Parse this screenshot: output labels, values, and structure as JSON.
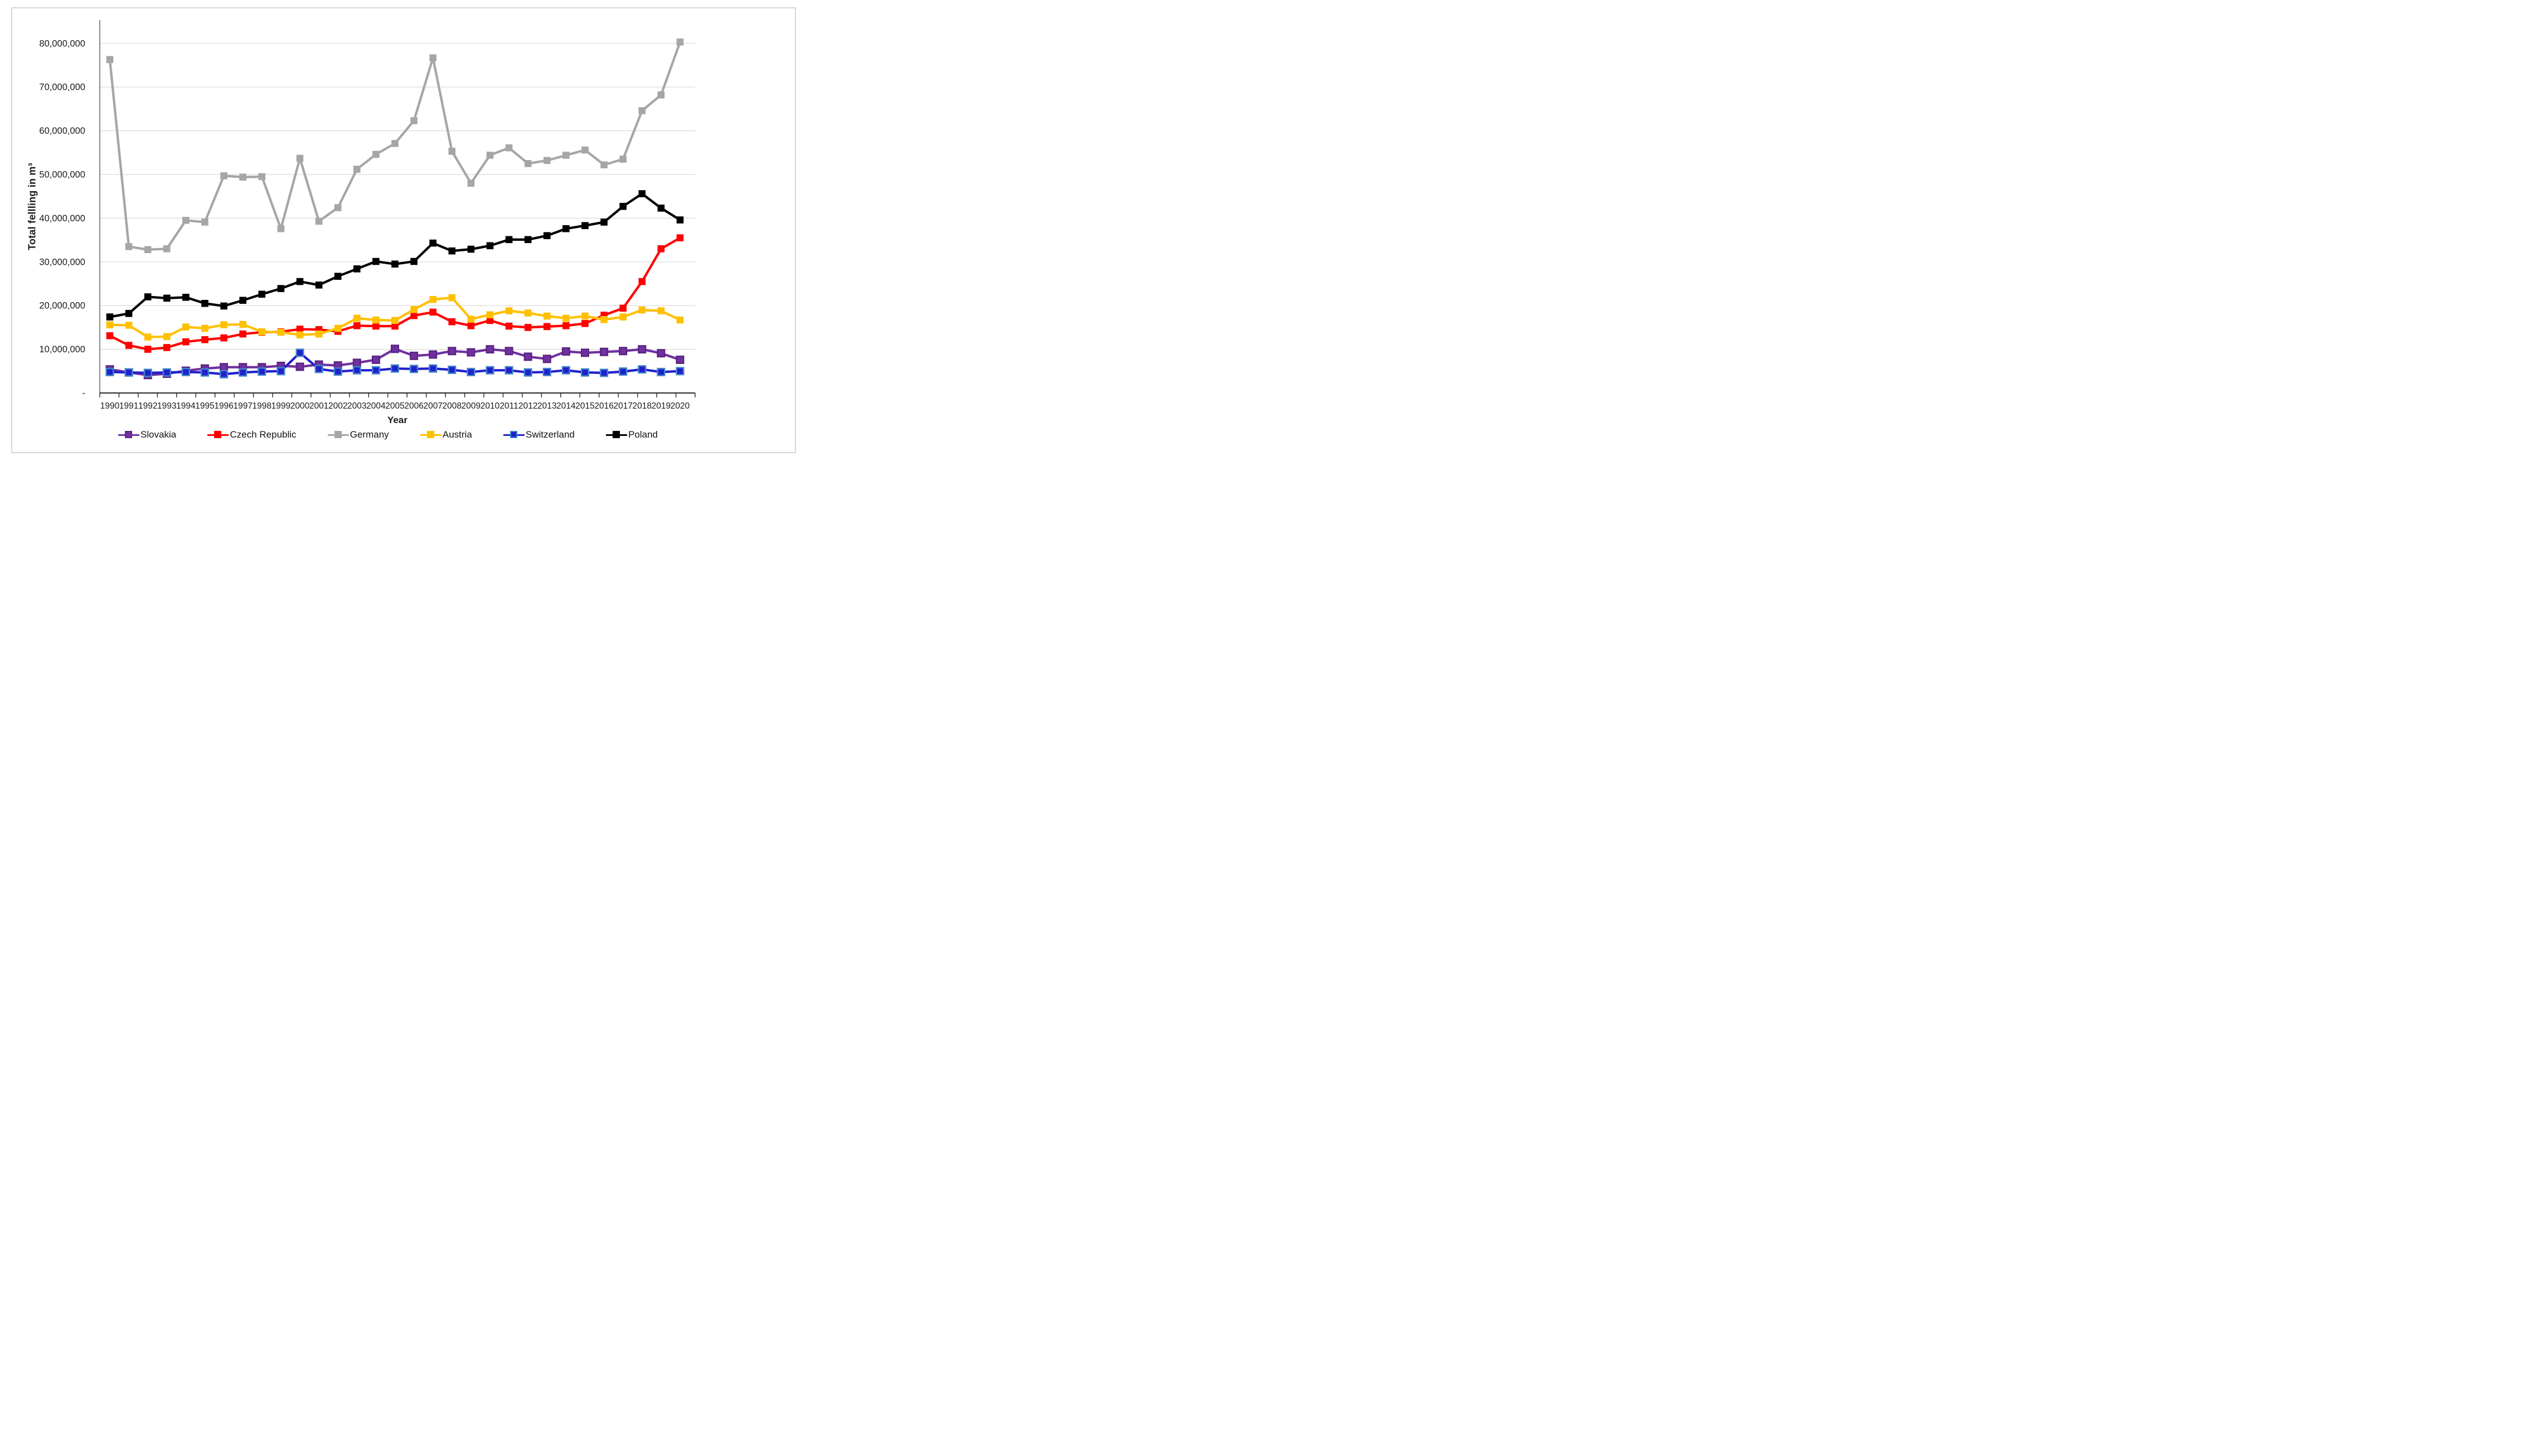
{
  "chart_data": {
    "type": "line",
    "title": "",
    "xlabel": "Year",
    "ylabel": "Total fellling in m³",
    "x": [
      1990,
      1991,
      1992,
      1993,
      1994,
      1995,
      1996,
      1997,
      1998,
      1999,
      2000,
      2001,
      2002,
      2003,
      2004,
      2005,
      2006,
      2007,
      2008,
      2009,
      2010,
      2011,
      2012,
      2013,
      2014,
      2015,
      2016,
      2017,
      2018,
      2019,
      2020
    ],
    "ylim": [
      0,
      80000000
    ],
    "ytick_step": 10000000,
    "zero_tick_label": "-",
    "grid": "horizontal",
    "legend_position": "bottom",
    "axis_color": "#262626",
    "gridline_color": "#d9d9d9",
    "yaxis_line_color": "#6e6e6e",
    "series": [
      {
        "name": "Slovakia",
        "color": "#7030A0",
        "marker_stroke": "#5a2580",
        "values": [
          5400000,
          4700000,
          4100000,
          4400000,
          5100000,
          5600000,
          5900000,
          5900000,
          5900000,
          6200000,
          6000000,
          6500000,
          6300000,
          6900000,
          7600000,
          10100000,
          8500000,
          8800000,
          9600000,
          9300000,
          10000000,
          9600000,
          8300000,
          7800000,
          9500000,
          9200000,
          9400000,
          9600000,
          10000000,
          9100000,
          7600000
        ]
      },
      {
        "name": "Czech Republic",
        "color": "#FF0000",
        "marker_stroke": "#FF0000",
        "values": [
          13100000,
          10900000,
          10000000,
          10400000,
          11700000,
          12200000,
          12600000,
          13500000,
          13900000,
          14000000,
          14600000,
          14500000,
          14100000,
          15400000,
          15300000,
          15300000,
          17700000,
          18500000,
          16300000,
          15400000,
          16600000,
          15300000,
          15000000,
          15200000,
          15400000,
          15900000,
          17800000,
          19400000,
          25500000,
          33000000,
          35500000
        ]
      },
      {
        "name": "Germany",
        "color": "#A6A6A6",
        "marker_stroke": "#A6A6A6",
        "values": [
          76300000,
          33500000,
          32800000,
          33000000,
          39500000,
          39100000,
          49700000,
          49400000,
          49500000,
          37600000,
          53700000,
          39300000,
          42400000,
          51200000,
          54600000,
          57100000,
          62300000,
          76700000,
          55300000,
          48000000,
          54400000,
          56100000,
          52500000,
          53200000,
          54400000,
          55600000,
          52200000,
          53500000,
          64600000,
          68200000,
          80300000
        ]
      },
      {
        "name": "Austria",
        "color": "#FFC000",
        "marker_stroke": "#FFC000",
        "values": [
          15600000,
          15500000,
          12800000,
          12900000,
          15100000,
          14800000,
          15600000,
          15700000,
          14000000,
          13900000,
          13300000,
          13500000,
          14800000,
          17100000,
          16700000,
          16600000,
          19100000,
          21400000,
          21800000,
          16900000,
          17900000,
          18800000,
          18300000,
          17600000,
          17100000,
          17600000,
          16800000,
          17400000,
          19000000,
          18800000,
          16700000
        ]
      },
      {
        "name": "Switzerland",
        "color": "#2021CE",
        "marker_stroke": "#4086C6",
        "values": [
          4800000,
          4700000,
          4600000,
          4700000,
          4800000,
          4700000,
          4300000,
          4700000,
          4900000,
          5000000,
          9200000,
          5500000,
          4900000,
          5200000,
          5200000,
          5600000,
          5500000,
          5600000,
          5300000,
          4800000,
          5200000,
          5200000,
          4700000,
          4800000,
          5200000,
          4700000,
          4600000,
          4900000,
          5400000,
          4800000,
          5000000
        ]
      },
      {
        "name": "Poland",
        "color": "#000000",
        "marker_stroke": "#000000",
        "values": [
          17400000,
          18200000,
          22000000,
          21700000,
          21900000,
          20500000,
          19900000,
          21200000,
          22600000,
          23900000,
          25500000,
          24700000,
          26700000,
          28400000,
          30100000,
          29500000,
          30100000,
          34300000,
          32500000,
          32900000,
          33700000,
          35100000,
          35100000,
          36000000,
          37600000,
          38300000,
          39100000,
          42700000,
          45600000,
          42300000,
          39600000
        ]
      }
    ]
  }
}
